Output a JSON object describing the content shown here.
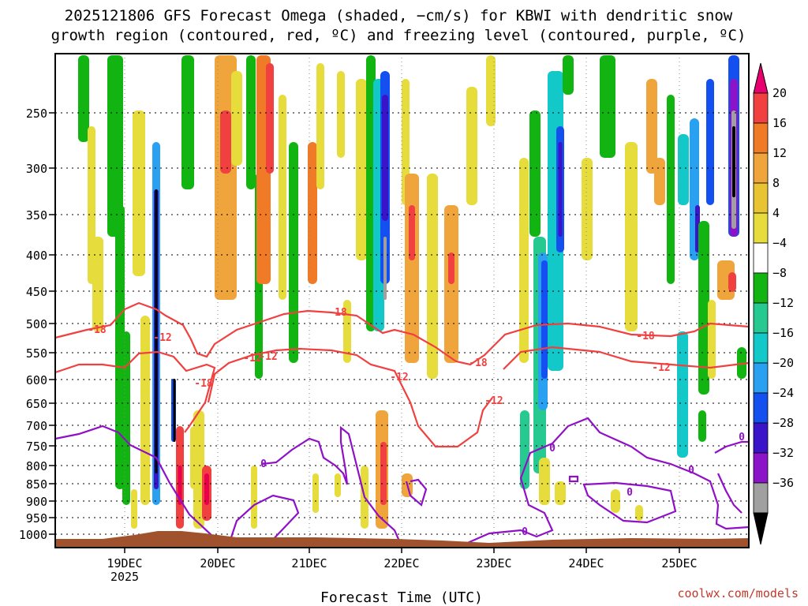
{
  "chart_data": {
    "type": "heatmap",
    "title_line1": "2025121806 GFS Forecast Omega (shaded, −cm/s) for KBWI with dendritic snow",
    "title_line2": "growth region (contoured, red, ºC) and freezing level (contoured, purple, ºC)",
    "xlabel": "Forecast Time (UTC)",
    "credit": "coolwx.com/models",
    "y_ticks": [
      "250",
      "300",
      "350",
      "400",
      "450",
      "500",
      "550",
      "600",
      "650",
      "700",
      "750",
      "800",
      "850",
      "900",
      "950",
      "1000"
    ],
    "x_ticks": [
      "19DEC",
      "20DEC",
      "21DEC",
      "22DEC",
      "23DEC",
      "24DEC",
      "25DEC"
    ],
    "x_year": "2025",
    "colorbar": {
      "labels": [
        "20",
        "16",
        "12",
        "8",
        "4",
        "−4",
        "−8",
        "−12",
        "−16",
        "−20",
        "−24",
        "−28",
        "−32",
        "−36"
      ],
      "colors": [
        "#e8004c",
        "#f04040",
        "#f07a26",
        "#f0a53c",
        "#e8c432",
        "#e6dc3c",
        "#ffffff",
        "#12b412",
        "#26c98f",
        "#12c8c8",
        "#2aa0f0",
        "#1450f0",
        "#3a14c8",
        "#8c14c8",
        "#a0a0a0",
        "#000000"
      ],
      "top_arrow_color": "#e8006e",
      "bottom_arrow_color": "#000000"
    },
    "contour_labels": [
      {
        "text": "-18",
        "color": "#f04040"
      },
      {
        "text": "-12",
        "color": "#f04040"
      },
      {
        "text": "-18",
        "color": "#f04040"
      },
      {
        "text": "-12",
        "color": "#f04040"
      },
      {
        "text": "-18",
        "color": "#f04040"
      },
      {
        "text": "-12",
        "color": "#f04040"
      },
      {
        "text": "-18",
        "color": "#f04040"
      },
      {
        "text": "-12",
        "color": "#f04040"
      },
      {
        "text": "-12",
        "color": "#f04040"
      },
      {
        "text": "-18",
        "color": "#f04040"
      },
      {
        "text": "-12",
        "color": "#f04040"
      },
      {
        "text": "0",
        "color": "#9010c8"
      },
      {
        "text": "0",
        "color": "#9010c8"
      },
      {
        "text": "0",
        "color": "#9010c8"
      },
      {
        "text": "0",
        "color": "#9010c8"
      },
      {
        "text": "0",
        "color": "#9010c8"
      },
      {
        "text": "0",
        "color": "#9010c8"
      }
    ],
    "terrain_color": "#a0522d",
    "dendritic_color": "#f04040",
    "freezing_color": "#9010c8"
  }
}
